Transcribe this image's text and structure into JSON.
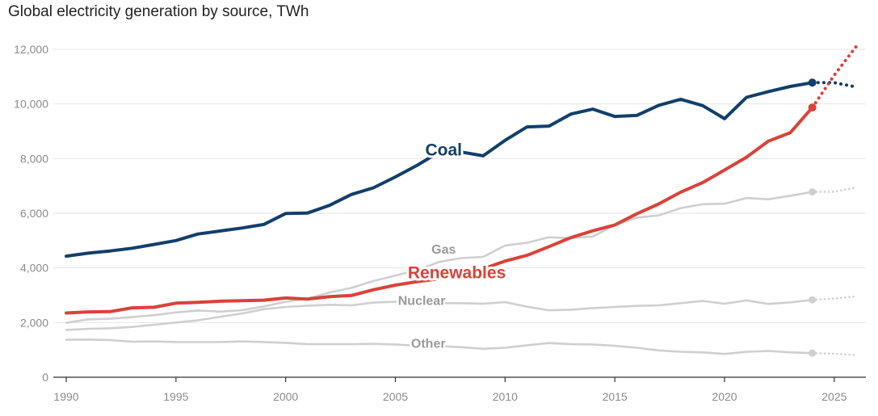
{
  "chart_data": {
    "type": "line",
    "title": "Global electricity generation by source, TWh",
    "xlabel": "",
    "ylabel": "",
    "xlim": [
      1990,
      2026
    ],
    "ylim": [
      0,
      12000
    ],
    "x_ticks": [
      1990,
      1995,
      2000,
      2005,
      2010,
      2015,
      2020,
      2025
    ],
    "y_ticks": [
      0,
      2000,
      4000,
      6000,
      8000,
      10000,
      12000
    ],
    "y_tick_labels": [
      "0",
      "2,000",
      "4,000",
      "6,000",
      "8,000",
      "10,000",
      "12,000"
    ],
    "grid": "horizontal",
    "legend": "none (direct labels)",
    "series": [
      {
        "name": "Coal",
        "color": "#123f6b",
        "emphasis": true,
        "x": [
          1990,
          1991,
          1992,
          1993,
          1994,
          1995,
          1996,
          1997,
          1998,
          1999,
          2000,
          2001,
          2002,
          2003,
          2004,
          2005,
          2006,
          2007,
          2008,
          2009,
          2010,
          2011,
          2012,
          2013,
          2014,
          2015,
          2016,
          2017,
          2018,
          2019,
          2020,
          2021,
          2022,
          2023,
          2024
        ],
        "values": [
          4430,
          4540,
          4620,
          4720,
          4860,
          5000,
          5240,
          5350,
          5460,
          5590,
          5990,
          6010,
          6290,
          6690,
          6930,
          7330,
          7760,
          8240,
          8240,
          8100,
          8670,
          9160,
          9190,
          9630,
          9810,
          9540,
          9580,
          9950,
          10170,
          9940,
          9460,
          10240,
          10450,
          10640,
          10780
        ],
        "forecast_x": [
          2024,
          2025,
          2026
        ],
        "forecast_values": [
          10780,
          10780,
          10620
        ]
      },
      {
        "name": "Renewables",
        "color": "#d9423a",
        "emphasis": true,
        "x": [
          1990,
          1991,
          1992,
          1993,
          1994,
          1995,
          1996,
          1997,
          1998,
          1999,
          2000,
          2001,
          2002,
          2003,
          2004,
          2005,
          2006,
          2007,
          2008,
          2009,
          2010,
          2011,
          2012,
          2013,
          2014,
          2015,
          2016,
          2017,
          2018,
          2019,
          2020,
          2021,
          2022,
          2023,
          2024
        ],
        "values": [
          2350,
          2390,
          2400,
          2540,
          2560,
          2710,
          2740,
          2780,
          2800,
          2820,
          2900,
          2860,
          2950,
          2990,
          3200,
          3370,
          3500,
          3600,
          3800,
          3970,
          4250,
          4460,
          4780,
          5110,
          5360,
          5570,
          5980,
          6340,
          6770,
          7120,
          7580,
          8050,
          8640,
          8950,
          9870
        ],
        "forecast_x": [
          2024,
          2025,
          2026
        ],
        "forecast_values": [
          9870,
          11050,
          12100
        ]
      },
      {
        "name": "Gas",
        "color": "#cfcfcf",
        "emphasis": false,
        "x": [
          1990,
          1991,
          1992,
          1993,
          1994,
          1995,
          1996,
          1997,
          1998,
          1999,
          2000,
          2001,
          2002,
          2003,
          2004,
          2005,
          2006,
          2007,
          2008,
          2009,
          2010,
          2011,
          2012,
          2013,
          2014,
          2015,
          2016,
          2017,
          2018,
          2019,
          2020,
          2021,
          2022,
          2023,
          2024
        ],
        "values": [
          1990,
          2120,
          2140,
          2200,
          2270,
          2370,
          2440,
          2400,
          2450,
          2590,
          2760,
          2880,
          3100,
          3270,
          3520,
          3720,
          3920,
          4220,
          4360,
          4400,
          4820,
          4920,
          5120,
          5090,
          5150,
          5560,
          5840,
          5920,
          6190,
          6330,
          6350,
          6560,
          6510,
          6640,
          6780
        ],
        "forecast_x": [
          2024,
          2025,
          2026
        ],
        "forecast_values": [
          6780,
          6790,
          6940
        ]
      },
      {
        "name": "Nuclear",
        "color": "#cfcfcf",
        "emphasis": false,
        "x": [
          1990,
          1991,
          1992,
          1993,
          1994,
          1995,
          1996,
          1997,
          1998,
          1999,
          2000,
          2001,
          2002,
          2003,
          2004,
          2005,
          2006,
          2007,
          2008,
          2009,
          2010,
          2011,
          2012,
          2013,
          2014,
          2015,
          2016,
          2017,
          2018,
          2019,
          2020,
          2021,
          2022,
          2023,
          2024
        ],
        "values": [
          1730,
          1770,
          1790,
          1840,
          1920,
          2000,
          2080,
          2210,
          2330,
          2490,
          2570,
          2620,
          2650,
          2630,
          2730,
          2760,
          2780,
          2710,
          2710,
          2690,
          2750,
          2580,
          2450,
          2470,
          2530,
          2570,
          2610,
          2630,
          2710,
          2790,
          2690,
          2810,
          2680,
          2740,
          2830
        ],
        "forecast_x": [
          2024,
          2025,
          2026
        ],
        "forecast_values": [
          2830,
          2880,
          2960
        ]
      },
      {
        "name": "Other",
        "color": "#cfcfcf",
        "emphasis": false,
        "x": [
          1990,
          1991,
          1992,
          1993,
          1994,
          1995,
          1996,
          1997,
          1998,
          1999,
          2000,
          2001,
          2002,
          2003,
          2004,
          2005,
          2006,
          2007,
          2008,
          2009,
          2010,
          2011,
          2012,
          2013,
          2014,
          2015,
          2016,
          2017,
          2018,
          2019,
          2020,
          2021,
          2022,
          2023,
          2024
        ],
        "values": [
          1370,
          1380,
          1360,
          1300,
          1310,
          1290,
          1290,
          1290,
          1310,
          1290,
          1260,
          1210,
          1210,
          1210,
          1220,
          1200,
          1150,
          1140,
          1100,
          1040,
          1080,
          1170,
          1250,
          1210,
          1200,
          1150,
          1080,
          980,
          930,
          910,
          850,
          930,
          960,
          910,
          880
        ],
        "forecast_x": [
          2024,
          2025,
          2026
        ],
        "forecast_values": [
          880,
          860,
          810
        ]
      }
    ],
    "annotations": [
      {
        "text": "Coal",
        "x": 2007.2,
        "y": 8280,
        "series": "Coal"
      },
      {
        "text": "Renewables",
        "x": 2007.8,
        "y": 3790,
        "series": "Renewables"
      },
      {
        "text": "Gas",
        "x": 2007.2,
        "y": 4640,
        "series": "Gas"
      },
      {
        "text": "Nuclear",
        "x": 2006.2,
        "y": 2770,
        "series": "Nuclear"
      },
      {
        "text": "Other",
        "x": 2006.5,
        "y": 1200,
        "series": "Other"
      }
    ]
  }
}
